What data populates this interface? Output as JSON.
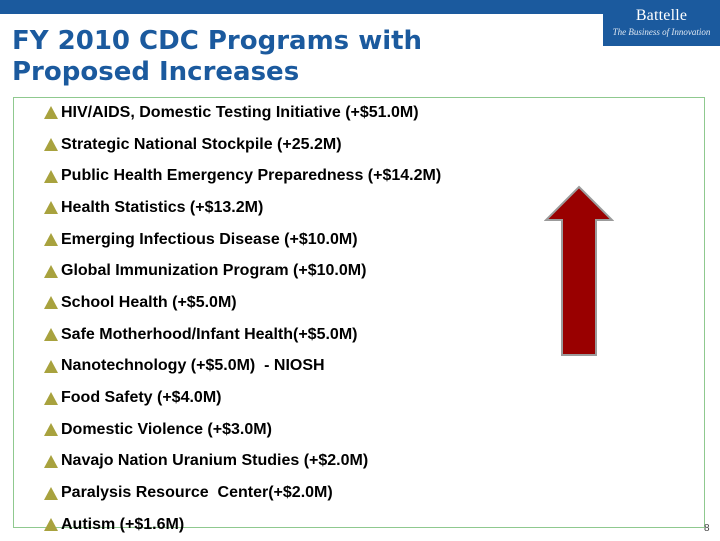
{
  "header": {
    "logo_name": "Battelle",
    "logo_tagline": "The Business of Innovation"
  },
  "slide": {
    "title_line1": "FY 2010 CDC Programs with",
    "title_line2": "Proposed Increases",
    "page_number": "8"
  },
  "programs": [
    "HIV/AIDS, Domestic Testing Initiative (+$51.0M)",
    "Strategic National Stockpile (+25.2M)",
    "Public Health Emergency Preparedness (+$14.2M)",
    "Health Statistics (+$13.2M)",
    "Emerging Infectious Disease (+$10.0M)",
    "Global Immunization Program (+$10.0M)",
    "School Health (+$5.0M)",
    "Safe Motherhood/Infant Health(+$5.0M)",
    "Nanotechnology (+$5.0M)  - NIOSH",
    "Food Safety (+$4.0M)",
    "Domestic Violence (+$3.0M)",
    "Navajo Nation Uranium Studies (+$2.0M)",
    "Paralysis Resource  Center(+$2.0M)",
    "Autism (+$1.6M)"
  ],
  "icons": {
    "bullet": "triangle-icon",
    "decoration": "up-arrow-icon"
  },
  "colors": {
    "brand_blue": "#1b5a9e",
    "bullet_olive": "#a8a23e",
    "arrow_red": "#990000",
    "frame_green": "#8fc98f"
  }
}
